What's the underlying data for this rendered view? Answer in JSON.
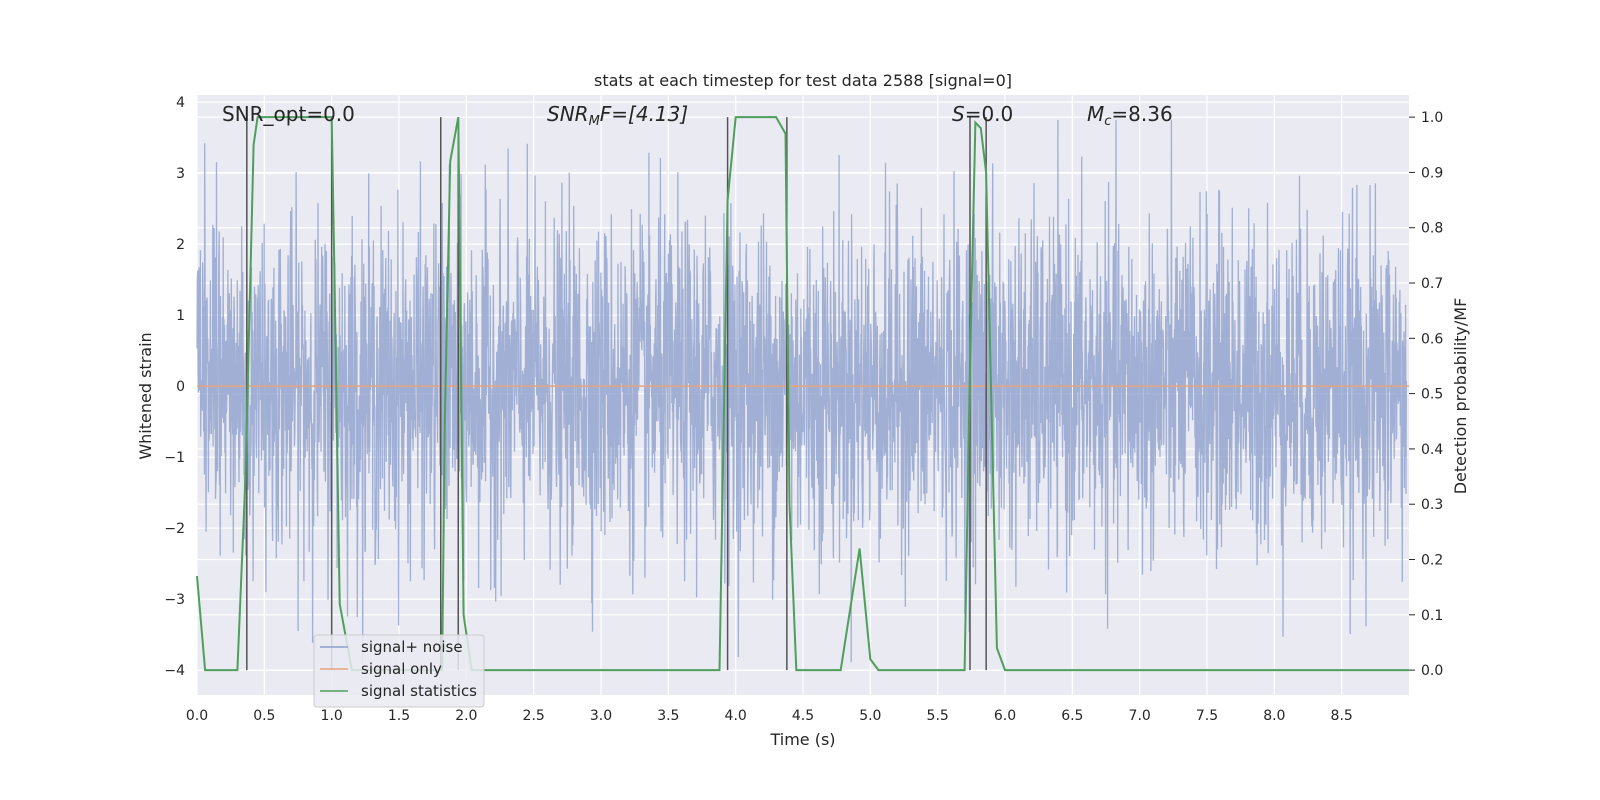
{
  "chart_data": {
    "type": "line",
    "title": "stats at each timestep for test data 2588 [signal=0]",
    "xlabel": "Time (s)",
    "ylabel": "Whitened strain",
    "y2label": "Detection probability/MF",
    "xlim": [
      0.0,
      9.0
    ],
    "ylim": [
      -4.35,
      4.1
    ],
    "y2lim": [
      -0.045,
      1.04
    ],
    "xticks": [
      "0.0",
      "0.5",
      "1.0",
      "1.5",
      "2.0",
      "2.5",
      "3.0",
      "3.5",
      "4.0",
      "4.5",
      "5.0",
      "5.5",
      "6.0",
      "6.5",
      "7.0",
      "7.5",
      "8.0",
      "8.5"
    ],
    "yticks": [
      "4",
      "3",
      "2",
      "1",
      "0",
      "−1",
      "−2",
      "−3",
      "−4"
    ],
    "y2ticks": [
      "1.0",
      "0.9",
      "0.8",
      "0.7",
      "0.6",
      "0.5",
      "0.4",
      "0.3",
      "0.2",
      "0.1",
      "0.0"
    ],
    "grid": true,
    "legend_position": "lower-left",
    "annotations": {
      "snr_opt": "SNR_opt=0.0",
      "snr_mf_main": "SNR",
      "snr_mf_sub": "M",
      "snr_mf_rest": "F=[4.13]",
      "s_main": "S",
      "s_rest": "=0.0",
      "mc_main": "M",
      "mc_sub": "c",
      "mc_rest": "=8.36"
    },
    "series": [
      {
        "name": "signal+ noise",
        "color": "#8da0cb",
        "axis": "left",
        "description_values": "whitened gaussian noise, amplitude approx -3.9 to 3.7",
        "noise_seed": 2588,
        "n_samples": 3600
      },
      {
        "name": "signal only",
        "color": "#e8a27c",
        "axis": "left",
        "x": [
          0.0,
          9.0
        ],
        "y": [
          0.0,
          0.0
        ]
      },
      {
        "name": "signal statistics",
        "color": "#4e9f5b",
        "axis": "right",
        "x": [
          0.0,
          0.06,
          0.12,
          0.3,
          0.36,
          0.42,
          0.45,
          0.5,
          1.0,
          1.02,
          1.06,
          1.12,
          1.15,
          1.82,
          1.84,
          1.88,
          1.94,
          1.98,
          2.04,
          3.88,
          3.94,
          4.0,
          4.3,
          4.37,
          4.4,
          4.45,
          4.7,
          4.78,
          4.92,
          5.0,
          5.06,
          5.7,
          5.74,
          5.78,
          5.82,
          5.86,
          5.94,
          6.0,
          9.0
        ],
        "y": [
          0.17,
          0.0,
          0.0,
          0.0,
          0.35,
          0.95,
          1.0,
          1.0,
          1.0,
          0.72,
          0.12,
          0.04,
          0.0,
          0.0,
          0.45,
          0.92,
          1.0,
          0.1,
          0.0,
          0.0,
          0.85,
          1.0,
          1.0,
          0.97,
          0.3,
          0.0,
          0.0,
          0.0,
          0.22,
          0.02,
          0.0,
          0.0,
          0.55,
          0.99,
          0.98,
          0.9,
          0.04,
          0.0,
          0.0
        ]
      }
    ],
    "vertical_lines": {
      "color": "#555555",
      "x": [
        0.37,
        1.0,
        1.81,
        1.94,
        3.94,
        4.38,
        5.74,
        5.86
      ]
    }
  }
}
